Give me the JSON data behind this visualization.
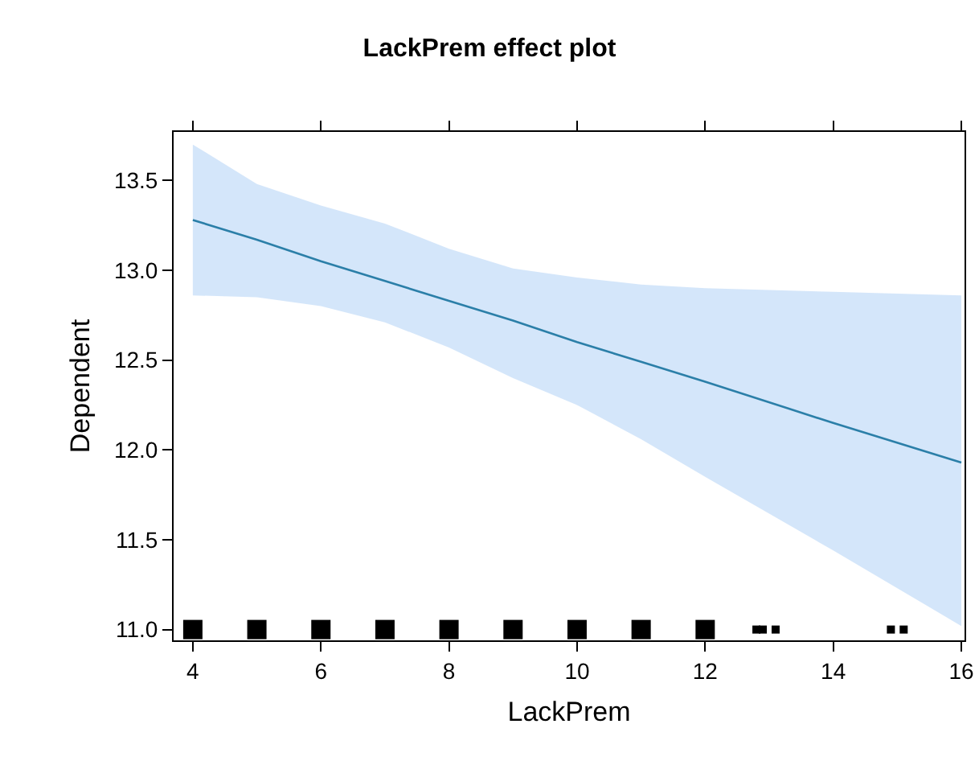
{
  "chart_data": {
    "type": "line",
    "title": "LackPrem effect plot",
    "xlabel": "LackPrem",
    "ylabel": "Dependent",
    "xlim": [
      3.7,
      16.05
    ],
    "ylim": [
      10.94,
      13.77
    ],
    "xticks": [
      4,
      6,
      8,
      10,
      12,
      14,
      16
    ],
    "yticks": [
      {
        "value": 11,
        "label": "11.0"
      },
      {
        "value": 11.5,
        "label": "11.5"
      },
      {
        "value": 12,
        "label": "12.0"
      },
      {
        "value": 12.5,
        "label": "12.5"
      },
      {
        "value": 13,
        "label": "13.0"
      },
      {
        "value": 13.5,
        "label": "13.5"
      }
    ],
    "grid": false,
    "series": [
      {
        "color": "#2b7fa8",
        "x": [
          4,
          5,
          6,
          7,
          8,
          9,
          10,
          11,
          12,
          14,
          16
        ],
        "values": [
          13.28,
          13.17,
          13.05,
          12.94,
          12.83,
          12.72,
          12.6,
          12.49,
          12.38,
          12.15,
          11.93
        ],
        "lower": [
          12.86,
          12.85,
          12.8,
          12.71,
          12.57,
          12.4,
          12.25,
          12.06,
          11.85,
          11.44,
          11.02
        ],
        "upper": [
          13.7,
          13.48,
          13.36,
          13.26,
          13.12,
          13.01,
          12.96,
          12.92,
          12.9,
          12.88,
          12.86
        ]
      },
      {
        "type": "scatter",
        "marker": "square",
        "color": "#000000",
        "x": [
          4,
          5,
          6,
          7,
          8,
          9,
          10,
          11,
          12
        ],
        "values": [
          11,
          11,
          11,
          11,
          11,
          11,
          11,
          11,
          11
        ]
      },
      {
        "type": "scatter",
        "color": "#000000",
        "x": [
          12.8,
          12.9,
          13.1,
          14.9,
          15.1
        ],
        "values": [
          11,
          11,
          11,
          11,
          11
        ]
      }
    ]
  }
}
